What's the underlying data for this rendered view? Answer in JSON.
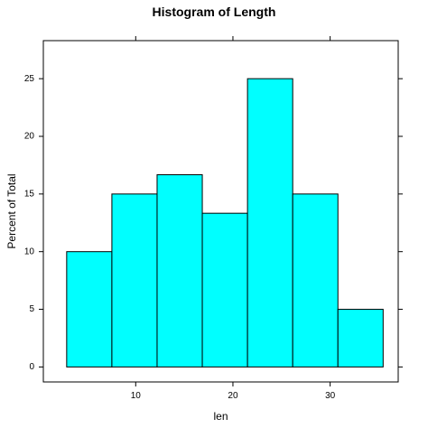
{
  "chart_data": {
    "type": "bar",
    "title": "Histogram of Length",
    "xlabel": "len",
    "ylabel": "Percent of Total",
    "bin_edges": [
      2.9,
      7.55,
      12.2,
      16.85,
      21.5,
      26.15,
      30.8,
      35.45
    ],
    "values": [
      10,
      15,
      16.67,
      13.33,
      25,
      15,
      5
    ],
    "xlim": [
      0.5,
      37.0
    ],
    "ylim": [
      -1.3,
      28.3
    ],
    "x_ticks": [
      10,
      20,
      30
    ],
    "y_ticks": [
      0,
      5,
      10,
      15,
      20,
      25
    ],
    "bar_color": "#00FFFF",
    "grid": false
  }
}
